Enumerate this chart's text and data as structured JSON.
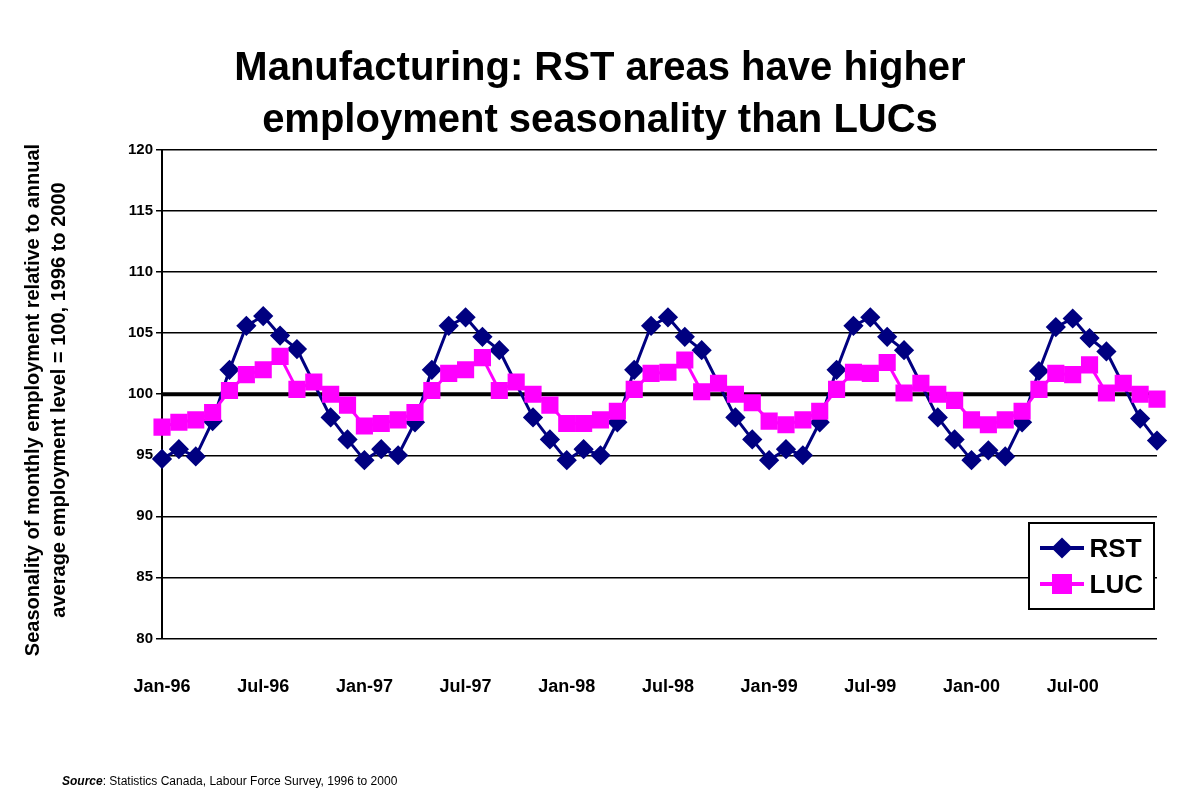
{
  "chart_data": {
    "type": "line",
    "title": "Manufacturing: RST areas have higher employment seasonality than LUCs",
    "ylabel": "Seasonality of monthly employment relative to annual average employment level = 100, 1996 to 2000",
    "categories": [
      "Jan-96",
      null,
      null,
      null,
      null,
      null,
      "Jul-96",
      null,
      null,
      null,
      null,
      null,
      "Jan-97",
      null,
      null,
      null,
      null,
      null,
      "Jul-97",
      null,
      null,
      null,
      null,
      null,
      "Jan-98",
      null,
      null,
      null,
      null,
      null,
      "Jul-98",
      null,
      null,
      null,
      null,
      null,
      "Jan-99",
      null,
      null,
      null,
      null,
      null,
      "Jul-99",
      null,
      null,
      null,
      null,
      null,
      "Jan-00",
      null,
      null,
      null,
      null,
      null,
      "Jul-00",
      null,
      null,
      null,
      null,
      null
    ],
    "series": [
      {
        "name": "RST",
        "color": "#000080",
        "marker": "diamond",
        "values": [
          94.7,
          95.5,
          94.9,
          97.8,
          102.0,
          105.6,
          106.4,
          104.8,
          103.7,
          null,
          98.1,
          96.3,
          94.6,
          95.5,
          95.0,
          97.7,
          102.0,
          105.6,
          106.3,
          104.7,
          103.6,
          null,
          98.1,
          96.3,
          94.6,
          95.5,
          95.0,
          97.7,
          102.0,
          105.6,
          106.3,
          104.7,
          103.6,
          null,
          98.1,
          96.3,
          94.6,
          95.5,
          95.0,
          97.7,
          102.0,
          105.6,
          106.3,
          104.7,
          103.6,
          null,
          98.1,
          96.3,
          94.6,
          95.4,
          94.9,
          97.7,
          101.9,
          105.5,
          106.2,
          104.6,
          103.5,
          null,
          98.0,
          96.2
        ]
      },
      {
        "name": "LUC",
        "color": "#ff00ff",
        "marker": "square",
        "values": [
          97.3,
          97.7,
          97.9,
          98.5,
          100.3,
          101.6,
          102.0,
          103.1,
          100.4,
          101.0,
          100.0,
          99.1,
          97.4,
          97.6,
          97.9,
          98.5,
          100.3,
          101.7,
          102.0,
          103.0,
          100.3,
          101.0,
          100.0,
          99.1,
          97.6,
          97.6,
          97.9,
          98.6,
          100.4,
          101.7,
          101.8,
          102.8,
          100.2,
          100.9,
          100.0,
          99.3,
          97.8,
          97.5,
          97.9,
          98.6,
          100.4,
          101.8,
          101.7,
          102.6,
          100.1,
          100.9,
          100.0,
          99.5,
          97.9,
          97.5,
          97.9,
          98.6,
          100.4,
          101.7,
          101.6,
          102.4,
          100.1,
          100.9,
          100.0,
          99.6
        ]
      }
    ],
    "ylim": [
      80,
      120
    ],
    "yticks": [
      80,
      85,
      90,
      95,
      100,
      105,
      110,
      115,
      120
    ],
    "grid": "y",
    "legend": "bottom right",
    "ref_lines": [
      {
        "axis": "y",
        "value": 100,
        "color": "#000000"
      }
    ],
    "annotations": [
      "Source: Statistics Canada, Labour Force Survey, 1996 to 2000"
    ]
  }
}
